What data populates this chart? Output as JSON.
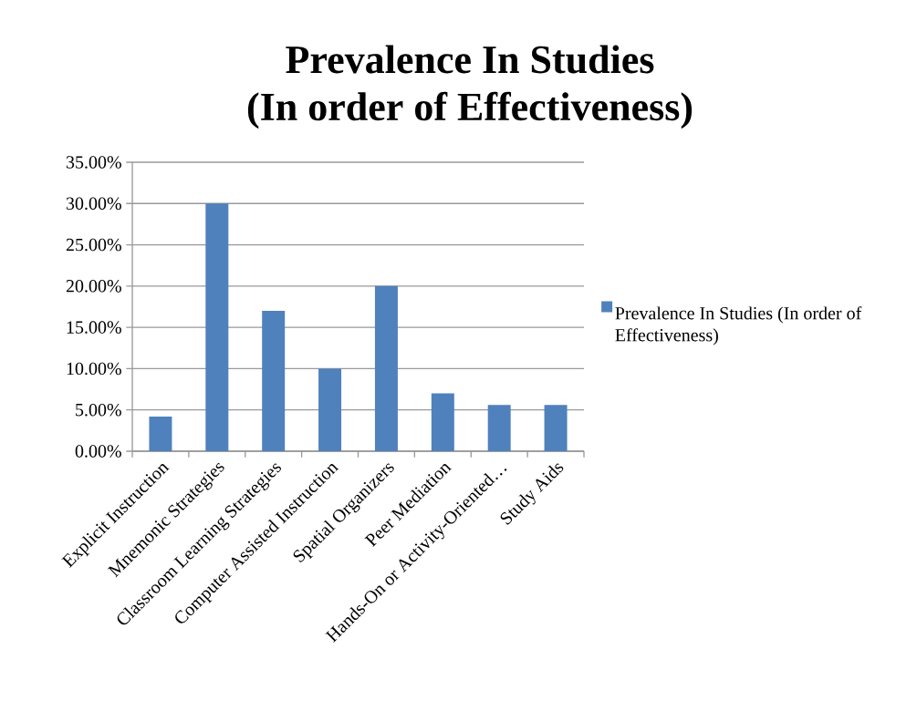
{
  "chart_data": {
    "type": "bar",
    "title": "Prevalence In Studies",
    "subtitle": "(In order of Effectiveness)",
    "categories": [
      "Explicit Instruction",
      "Mnemonic Strategies",
      "Classroom Learning Strategies",
      "Computer Assisted Instruction",
      "Spatial Organizers",
      "Peer Mediation",
      "Hands-On or Activity-Oriented…",
      "Study Aids"
    ],
    "series": [
      {
        "name": "Prevalence In Studies (In order of Effectiveness)",
        "color": "#4f81bd",
        "values": [
          4.2,
          30,
          17,
          10,
          20,
          7,
          5.6,
          5.6
        ]
      }
    ],
    "ylim": [
      0,
      35
    ],
    "yticks": [
      {
        "value": 0,
        "label": "0.00%"
      },
      {
        "value": 5,
        "label": "5.00%"
      },
      {
        "value": 10,
        "label": "10.00%"
      },
      {
        "value": 15,
        "label": "15.00%"
      },
      {
        "value": 20,
        "label": "20.00%"
      },
      {
        "value": 25,
        "label": "25.00%"
      },
      {
        "value": 30,
        "label": "30.00%"
      },
      {
        "value": 35,
        "label": "35.00%"
      }
    ],
    "grid": "y",
    "legend": "right"
  }
}
